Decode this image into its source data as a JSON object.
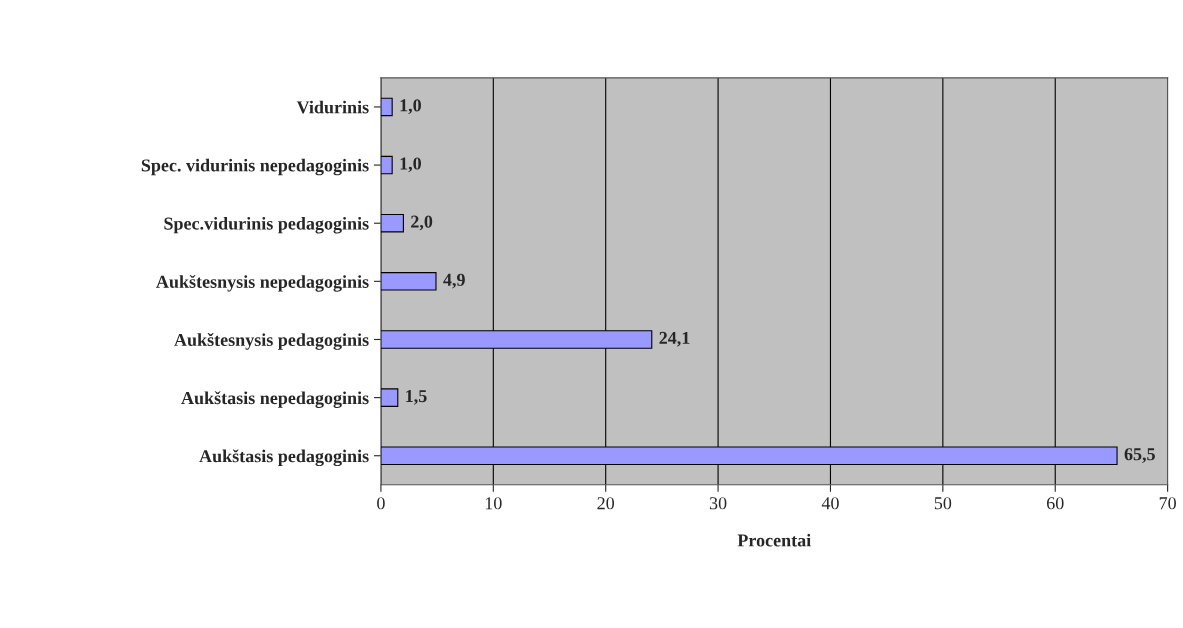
{
  "chart_data": {
    "type": "bar",
    "orientation": "horizontal",
    "xlabel": "Procentai",
    "categories": [
      "Vidurinis",
      "Spec. vidurinis nepedagoginis",
      "Spec.vidurinis pedagoginis",
      "Aukštesnysis nepedagoginis",
      "Aukštesnysis pedagoginis",
      "Aukštasis nepedagoginis",
      "Aukštasis pedagoginis"
    ],
    "values": [
      1.0,
      1.0,
      2.0,
      4.9,
      24.1,
      1.5,
      65.5
    ],
    "value_labels": [
      "1,0",
      "1,0",
      "2,0",
      "4,9",
      "24,1",
      "1,5",
      "65,5"
    ],
    "color": "#9999ff",
    "xlim": [
      0,
      70
    ],
    "xticks": [
      0,
      10,
      20,
      30,
      40,
      50,
      60,
      70
    ],
    "grid": "x",
    "legend": false
  }
}
